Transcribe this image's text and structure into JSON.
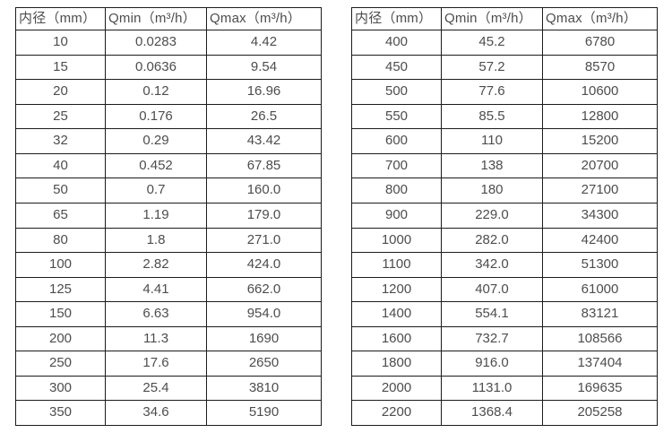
{
  "colors": {
    "text": "#4d4d4d",
    "border": "#1c1c1c",
    "background": "#ffffff"
  },
  "chart_data": [
    {
      "type": "table",
      "title": "",
      "headers": [
        "内径（mm）",
        "Qmin（m³/h）",
        "Qmax（m³/h）"
      ],
      "rows": [
        [
          "10",
          "0.0283",
          "4.42"
        ],
        [
          "15",
          "0.0636",
          "9.54"
        ],
        [
          "20",
          "0.12",
          "16.96"
        ],
        [
          "25",
          "0.176",
          "26.5"
        ],
        [
          "32",
          "0.29",
          "43.42"
        ],
        [
          "40",
          "0.452",
          "67.85"
        ],
        [
          "50",
          "0.7",
          "160.0"
        ],
        [
          "65",
          "1.19",
          "179.0"
        ],
        [
          "80",
          "1.8",
          "271.0"
        ],
        [
          "100",
          "2.82",
          "424.0"
        ],
        [
          "125",
          "4.41",
          "662.0"
        ],
        [
          "150",
          "6.63",
          "954.0"
        ],
        [
          "200",
          "11.3",
          "1690"
        ],
        [
          "250",
          "17.6",
          "2650"
        ],
        [
          "300",
          "25.4",
          "3810"
        ],
        [
          "350",
          "34.6",
          "5190"
        ]
      ]
    },
    {
      "type": "table",
      "title": "",
      "headers": [
        "内径（mm）",
        "Qmin（m³/h）",
        "Qmax（m³/h）"
      ],
      "rows": [
        [
          "400",
          "45.2",
          "6780"
        ],
        [
          "450",
          "57.2",
          "8570"
        ],
        [
          "500",
          "77.6",
          "10600"
        ],
        [
          "550",
          "85.5",
          "12800"
        ],
        [
          "600",
          "110",
          "15200"
        ],
        [
          "700",
          "138",
          "20700"
        ],
        [
          "800",
          "180",
          "27100"
        ],
        [
          "900",
          "229.0",
          "34300"
        ],
        [
          "1000",
          "282.0",
          "42400"
        ],
        [
          "1100",
          "342.0",
          "51300"
        ],
        [
          "1200",
          "407.0",
          "61000"
        ],
        [
          "1400",
          "554.1",
          "83121"
        ],
        [
          "1600",
          "732.7",
          "108566"
        ],
        [
          "1800",
          "916.0",
          "137404"
        ],
        [
          "2000",
          "1131.0",
          "169635"
        ],
        [
          "2200",
          "1368.4",
          "205258"
        ]
      ]
    }
  ]
}
